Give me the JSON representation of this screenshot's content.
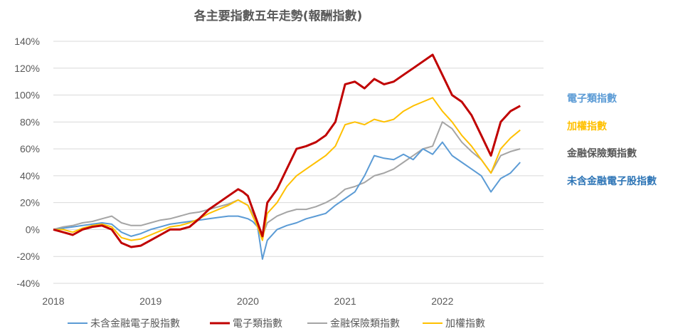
{
  "chart_data": {
    "type": "line",
    "title": "各主要指數五年走勢(報酬指數)",
    "xlabel": "",
    "ylabel": "",
    "x_ticks": [
      "2018",
      "2019",
      "2020",
      "2021",
      "2022"
    ],
    "y_ticks": [
      "140%",
      "120%",
      "100%",
      "80%",
      "60%",
      "40%",
      "20%",
      "0%",
      "-20%",
      "-40%"
    ],
    "xlim": [
      2018.0,
      2022.8
    ],
    "ylim": [
      -40,
      140
    ],
    "grid": "horizontal",
    "legend_position": "bottom",
    "series": [
      {
        "name": "未含金融電子股指數",
        "color": "#5b9bd5",
        "end_label_color": "#2e75b6",
        "x": [
          2018.0,
          2018.1,
          2018.2,
          2018.3,
          2018.4,
          2018.5,
          2018.6,
          2018.7,
          2018.8,
          2018.9,
          2019.0,
          2019.1,
          2019.2,
          2019.3,
          2019.4,
          2019.5,
          2019.6,
          2019.7,
          2019.8,
          2019.9,
          2019.95,
          2020.0,
          2020.05,
          2020.1,
          2020.15,
          2020.2,
          2020.3,
          2020.4,
          2020.5,
          2020.6,
          2020.7,
          2020.8,
          2020.9,
          2021.0,
          2021.1,
          2021.2,
          2021.3,
          2021.4,
          2021.5,
          2021.6,
          2021.7,
          2021.8,
          2021.9,
          2022.0,
          2022.1,
          2022.2,
          2022.3,
          2022.4,
          2022.5,
          2022.6,
          2022.7,
          2022.8
        ],
        "values": [
          0,
          1,
          2,
          3,
          4,
          5,
          4,
          -2,
          -5,
          -3,
          0,
          2,
          4,
          5,
          6,
          7,
          8,
          9,
          10,
          10,
          9,
          8,
          6,
          2,
          -22,
          -8,
          0,
          3,
          5,
          8,
          10,
          12,
          18,
          23,
          28,
          40,
          55,
          53,
          52,
          56,
          52,
          60,
          56,
          65,
          55,
          50,
          45,
          40,
          28,
          38,
          42,
          50
        ]
      },
      {
        "name": "電子類指數",
        "color": "#c00000",
        "end_label_color": "#5b9bd5",
        "x": [
          2018.0,
          2018.1,
          2018.2,
          2018.3,
          2018.4,
          2018.5,
          2018.6,
          2018.7,
          2018.8,
          2018.9,
          2019.0,
          2019.1,
          2019.2,
          2019.3,
          2019.4,
          2019.5,
          2019.6,
          2019.7,
          2019.8,
          2019.9,
          2019.95,
          2020.0,
          2020.05,
          2020.1,
          2020.15,
          2020.2,
          2020.3,
          2020.4,
          2020.5,
          2020.6,
          2020.7,
          2020.8,
          2020.9,
          2021.0,
          2021.1,
          2021.2,
          2021.3,
          2021.4,
          2021.5,
          2021.6,
          2021.7,
          2021.8,
          2021.9,
          2022.0,
          2022.1,
          2022.2,
          2022.3,
          2022.4,
          2022.5,
          2022.6,
          2022.7,
          2022.8
        ],
        "values": [
          0,
          -2,
          -4,
          0,
          2,
          3,
          0,
          -10,
          -13,
          -12,
          -8,
          -4,
          0,
          0,
          2,
          8,
          15,
          20,
          25,
          30,
          28,
          25,
          15,
          5,
          -5,
          20,
          30,
          45,
          60,
          62,
          65,
          70,
          80,
          108,
          110,
          105,
          112,
          108,
          110,
          115,
          120,
          125,
          130,
          115,
          100,
          95,
          85,
          70,
          55,
          80,
          88,
          92
        ]
      },
      {
        "name": "金融保險類指數",
        "color": "#a5a5a5",
        "end_label_color": "#595959",
        "x": [
          2018.0,
          2018.1,
          2018.2,
          2018.3,
          2018.4,
          2018.5,
          2018.6,
          2018.7,
          2018.8,
          2018.9,
          2019.0,
          2019.1,
          2019.2,
          2019.3,
          2019.4,
          2019.5,
          2019.6,
          2019.7,
          2019.8,
          2019.9,
          2019.95,
          2020.0,
          2020.05,
          2020.1,
          2020.15,
          2020.2,
          2020.3,
          2020.4,
          2020.5,
          2020.6,
          2020.7,
          2020.8,
          2020.9,
          2021.0,
          2021.1,
          2021.2,
          2021.3,
          2021.4,
          2021.5,
          2021.6,
          2021.7,
          2021.8,
          2021.9,
          2022.0,
          2022.1,
          2022.2,
          2022.3,
          2022.4,
          2022.5,
          2022.6,
          2022.7,
          2022.8
        ],
        "values": [
          0,
          2,
          3,
          5,
          6,
          8,
          10,
          5,
          3,
          3,
          5,
          7,
          8,
          10,
          12,
          13,
          15,
          17,
          19,
          22,
          20,
          18,
          12,
          5,
          -5,
          5,
          10,
          13,
          15,
          15,
          17,
          20,
          24,
          30,
          32,
          35,
          40,
          42,
          45,
          50,
          55,
          60,
          62,
          80,
          75,
          65,
          58,
          52,
          42,
          55,
          58,
          60
        ]
      },
      {
        "name": "加權指數",
        "color": "#ffc000",
        "end_label_color": "#ffc000",
        "x": [
          2018.0,
          2018.1,
          2018.2,
          2018.3,
          2018.4,
          2018.5,
          2018.6,
          2018.7,
          2018.8,
          2018.9,
          2019.0,
          2019.1,
          2019.2,
          2019.3,
          2019.4,
          2019.5,
          2019.6,
          2019.7,
          2019.8,
          2019.9,
          2019.95,
          2020.0,
          2020.05,
          2020.1,
          2020.15,
          2020.2,
          2020.3,
          2020.4,
          2020.5,
          2020.6,
          2020.7,
          2020.8,
          2020.9,
          2021.0,
          2021.1,
          2021.2,
          2021.3,
          2021.4,
          2021.5,
          2021.6,
          2021.7,
          2021.8,
          2021.9,
          2022.0,
          2022.1,
          2022.2,
          2022.3,
          2022.4,
          2022.5,
          2022.6,
          2022.7,
          2022.8
        ],
        "values": [
          0,
          0,
          -2,
          1,
          3,
          4,
          2,
          -6,
          -8,
          -7,
          -4,
          -1,
          2,
          3,
          5,
          8,
          12,
          15,
          18,
          22,
          20,
          18,
          10,
          2,
          -8,
          12,
          20,
          32,
          40,
          45,
          50,
          55,
          62,
          78,
          80,
          78,
          82,
          80,
          82,
          88,
          92,
          95,
          98,
          88,
          80,
          70,
          62,
          52,
          42,
          60,
          68,
          74
        ]
      }
    ]
  }
}
